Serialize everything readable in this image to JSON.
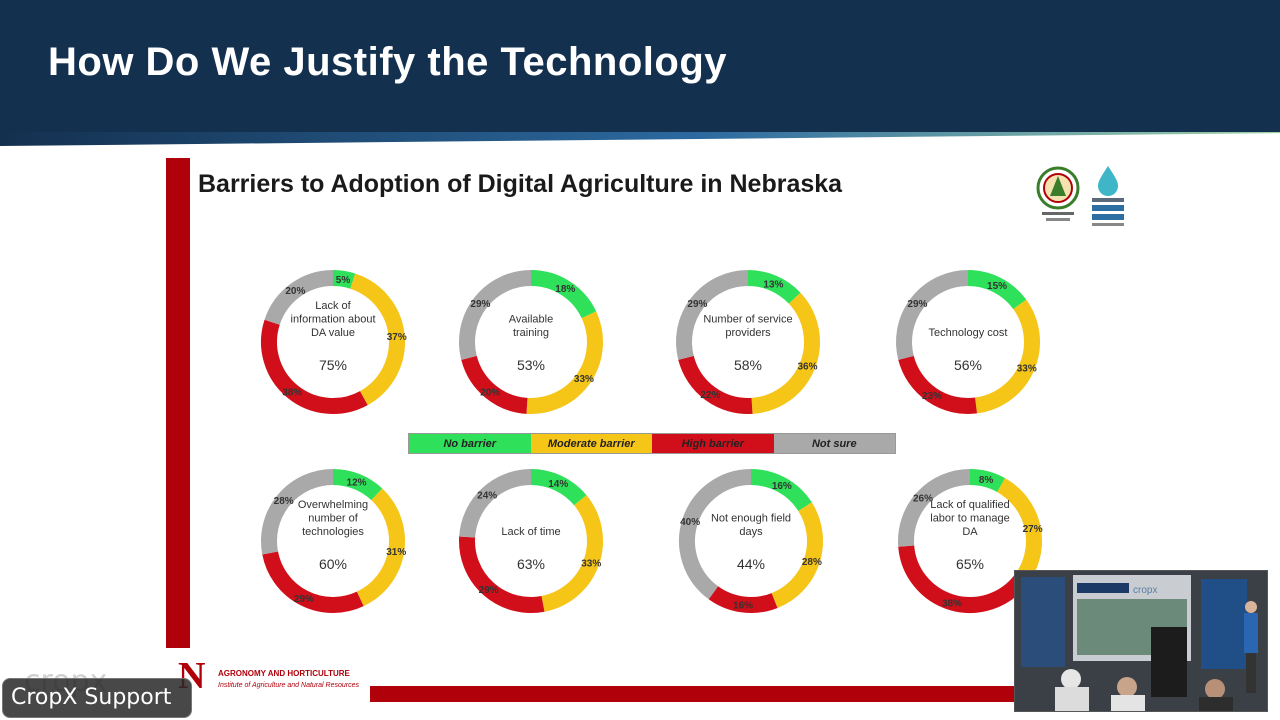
{
  "header": {
    "title": "How Do We Justify the Technology"
  },
  "slide": {
    "title": "Barriers to Adoption of Digital Agriculture in Nebraska"
  },
  "legend": [
    "No barrier",
    "Moderate barrier",
    "High barrier",
    "Not sure"
  ],
  "colors": {
    "no_barrier": "#2ee05a",
    "moderate": "#f5c518",
    "high": "#d10f1a",
    "not_sure": "#a9a9a9",
    "header_bg": "#14304f",
    "accent_red": "#b0000a"
  },
  "footer": {
    "line1": "AGRONOMY AND HORTICULTURE",
    "line2": "Institute of Agriculture and Natural Resources"
  },
  "overlay": {
    "badge": "CropX Support",
    "brand_watermark": "cropx"
  },
  "video_thumbnail": {
    "screen_label": "cropx"
  },
  "chart_data": [
    {
      "type": "pie",
      "label": "Lack of information about DA value",
      "summary": "75%",
      "series": [
        "No barrier",
        "Moderate barrier",
        "High barrier",
        "Not sure"
      ],
      "values": [
        5,
        37,
        38,
        20
      ],
      "labels": [
        "5%",
        "37%",
        "38%",
        "20%"
      ]
    },
    {
      "type": "pie",
      "label": "Available training",
      "summary": "53%",
      "series": [
        "No barrier",
        "Moderate barrier",
        "High barrier",
        "Not sure"
      ],
      "values": [
        18,
        33,
        20,
        29
      ],
      "labels": [
        "18%",
        "33%",
        "20%",
        "29%"
      ]
    },
    {
      "type": "pie",
      "label": "Number of service providers",
      "summary": "58%",
      "series": [
        "No barrier",
        "Moderate barrier",
        "High barrier",
        "Not sure"
      ],
      "values": [
        13,
        36,
        22,
        29
      ],
      "labels": [
        "13%",
        "36%",
        "22%",
        "29%"
      ]
    },
    {
      "type": "pie",
      "label": "Technology cost",
      "summary": "56%",
      "series": [
        "No barrier",
        "Moderate barrier",
        "High barrier",
        "Not sure"
      ],
      "values": [
        15,
        33,
        23,
        29
      ],
      "labels": [
        "15%",
        "33%",
        "23%",
        "29%"
      ]
    },
    {
      "type": "pie",
      "label": "Overwhelming number of technologies",
      "summary": "60%",
      "series": [
        "No barrier",
        "Moderate barrier",
        "High barrier",
        "Not sure"
      ],
      "values": [
        12,
        31,
        29,
        28
      ],
      "labels": [
        "12%",
        "31%",
        "29%",
        "28%"
      ]
    },
    {
      "type": "pie",
      "label": "Lack of time",
      "summary": "63%",
      "series": [
        "No barrier",
        "Moderate barrier",
        "High barrier",
        "Not sure"
      ],
      "values": [
        14,
        33,
        29,
        24
      ],
      "labels": [
        "14%",
        "33%",
        "29%",
        "24%"
      ]
    },
    {
      "type": "pie",
      "label": "Not enough field days",
      "summary": "44%",
      "series": [
        "No barrier",
        "Moderate barrier",
        "High barrier",
        "Not sure"
      ],
      "values": [
        16,
        28,
        16,
        40
      ],
      "labels": [
        "16%",
        "28%",
        "16%",
        "40%"
      ]
    },
    {
      "type": "pie",
      "label": "Lack of qualified labor to manage DA",
      "summary": "65%",
      "series": [
        "No barrier",
        "Moderate barrier",
        "High barrier",
        "Not sure"
      ],
      "values": [
        8,
        27,
        38,
        26
      ],
      "labels": [
        "8%",
        "27%",
        "38%",
        "26%"
      ]
    }
  ]
}
